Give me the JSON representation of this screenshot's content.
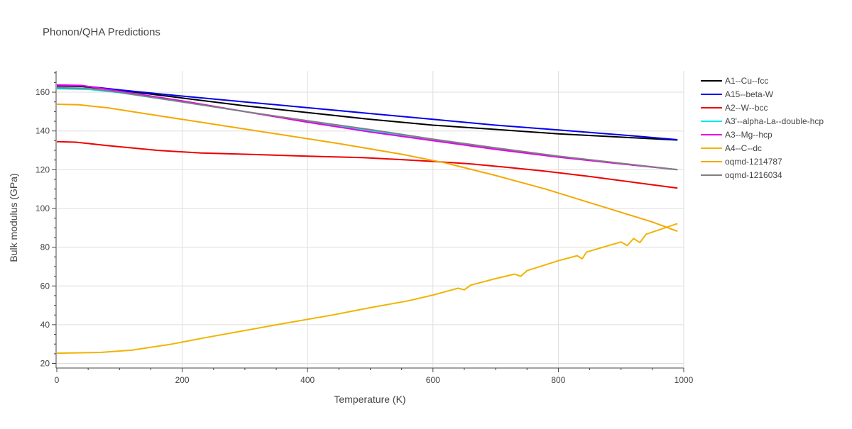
{
  "chart_data": {
    "type": "line",
    "title": "Phonon/QHA Predictions",
    "xlabel": "Temperature (K)",
    "ylabel": "Bulk modulus (GPa)",
    "xlim": [
      0,
      1000
    ],
    "ylim": [
      18,
      171
    ],
    "xticks": [
      0,
      200,
      400,
      600,
      800,
      1000
    ],
    "yticks": [
      20,
      40,
      60,
      80,
      100,
      120,
      140,
      160
    ],
    "grid": true,
    "legend_position": "right",
    "series": [
      {
        "name": "A1--Cu--fcc",
        "color": "#000000",
        "x": [
          0,
          40,
          100,
          200,
          300,
          400,
          500,
          600,
          700,
          800,
          900,
          990
        ],
        "y": [
          163.2,
          163.0,
          161.0,
          157.0,
          153.0,
          149.5,
          146.0,
          143.0,
          140.8,
          138.5,
          136.8,
          135.3
        ]
      },
      {
        "name": "A15--beta-W",
        "color": "#0000ee",
        "x": [
          0,
          40,
          100,
          200,
          300,
          400,
          500,
          600,
          700,
          800,
          900,
          990
        ],
        "y": [
          163.5,
          163.3,
          161.2,
          158.0,
          155.0,
          152.0,
          149.0,
          146.0,
          143.0,
          140.5,
          138.0,
          135.5
        ]
      },
      {
        "name": "A2--W--bcc",
        "color": "#ee0000",
        "x": [
          0,
          30,
          80,
          160,
          230,
          300,
          400,
          490,
          550,
          600,
          660,
          720,
          780,
          850,
          920,
          990
        ],
        "y": [
          134.5,
          134.2,
          132.5,
          130.0,
          128.6,
          128.0,
          127.0,
          126.2,
          125.2,
          124.3,
          123.0,
          121.2,
          119.2,
          116.5,
          113.5,
          110.5
        ]
      },
      {
        "name": "A3'--alpha-La--double-hcp",
        "color": "#00e8e8",
        "x": [
          0,
          50,
          100,
          200,
          300,
          400,
          500,
          600,
          700,
          800,
          900,
          990
        ],
        "y": [
          161.8,
          161.5,
          159.8,
          155.0,
          150.0,
          145.0,
          140.0,
          135.5,
          131.0,
          127.0,
          123.2,
          120.0
        ]
      },
      {
        "name": "A3--Mg--hcp",
        "color": "#e800e8",
        "x": [
          0,
          40,
          100,
          200,
          300,
          400,
          500,
          600,
          700,
          800,
          900,
          990
        ],
        "y": [
          163.8,
          163.5,
          160.5,
          155.5,
          150.0,
          144.5,
          139.5,
          135.0,
          130.5,
          126.5,
          123.0,
          120.0
        ]
      },
      {
        "name": "A4--C--dc",
        "color": "#f0b400",
        "x": [
          0,
          70,
          120,
          180,
          240,
          300,
          360,
          440,
          500,
          560,
          600,
          640,
          650,
          660,
          700,
          730,
          740,
          750,
          800,
          830,
          838,
          845,
          900,
          910,
          920,
          930,
          940,
          990
        ],
        "y": [
          25.3,
          25.7,
          26.9,
          29.8,
          33.5,
          37.0,
          40.5,
          45.0,
          48.8,
          52.3,
          55.3,
          58.8,
          58.0,
          60.4,
          63.8,
          66.1,
          65.0,
          67.9,
          73.0,
          75.6,
          74.0,
          77.5,
          82.7,
          80.8,
          84.5,
          82.4,
          86.7,
          92.2
        ]
      },
      {
        "name": "oqmd-1214787",
        "color": "#f5a800",
        "x": [
          0,
          35,
          80,
          150,
          250,
          350,
          450,
          550,
          620,
          700,
          780,
          850,
          900,
          950,
          990
        ],
        "y": [
          153.8,
          153.5,
          152.0,
          148.5,
          143.5,
          138.5,
          133.5,
          128.0,
          123.5,
          117.0,
          110.0,
          103.0,
          98.0,
          93.0,
          88.2
        ]
      },
      {
        "name": "oqmd-1216034",
        "color": "#808080",
        "x": [
          0,
          50,
          100,
          200,
          300,
          400,
          500,
          600,
          700,
          800,
          900,
          990
        ],
        "y": [
          162.3,
          162.0,
          160.0,
          155.0,
          150.0,
          145.3,
          140.7,
          135.8,
          131.3,
          127.0,
          123.3,
          120.0
        ]
      }
    ]
  }
}
